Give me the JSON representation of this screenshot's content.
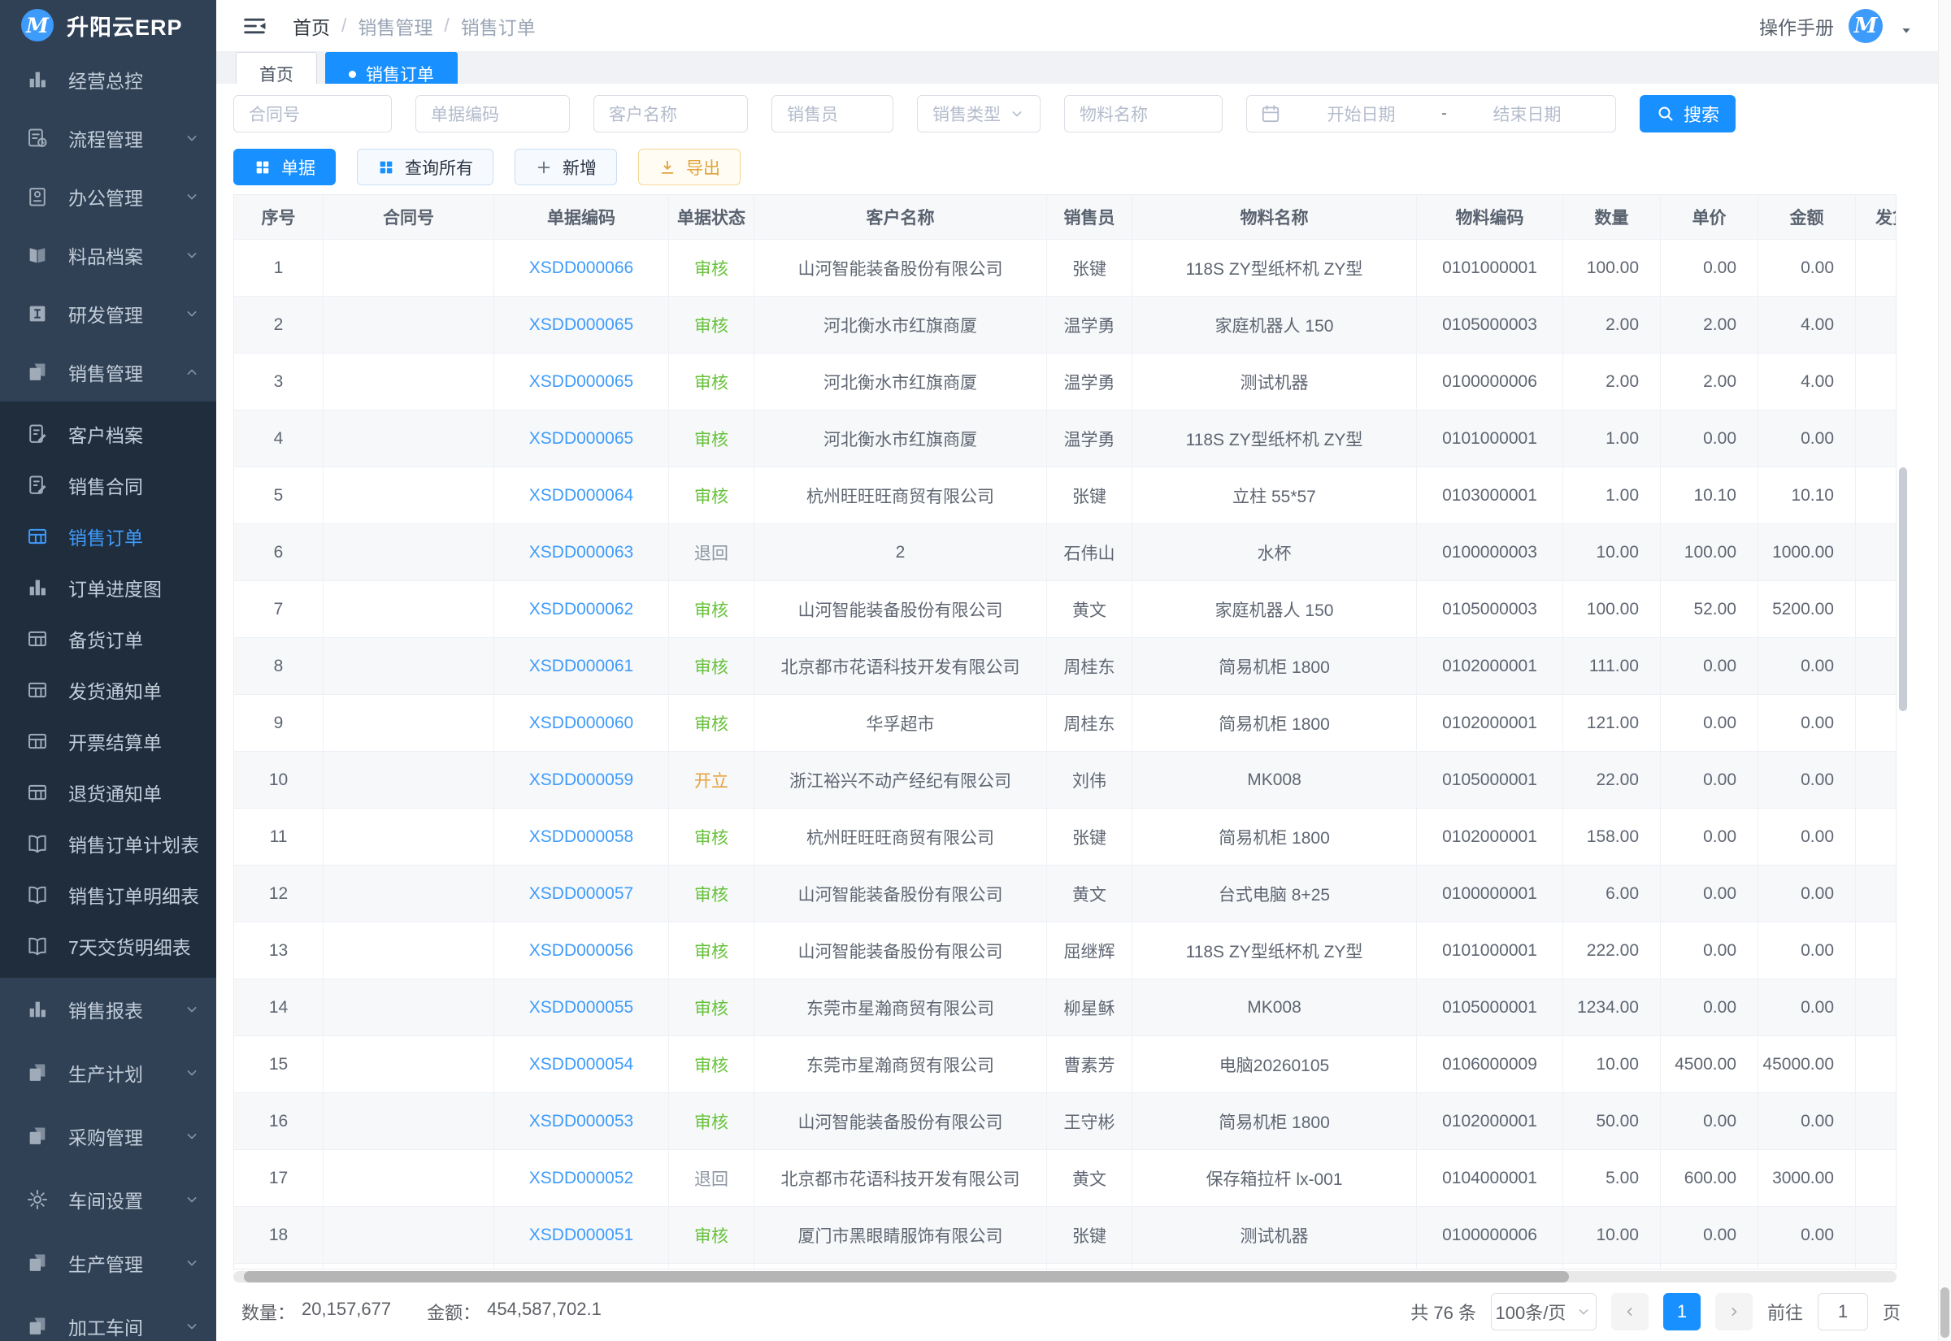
{
  "colors": {
    "accent": "#1890ff",
    "link": "#409eff",
    "status_approved": "#67c23a",
    "status_open": "#e6a23c",
    "status_returned": "#909399",
    "sidebar_bg": "#304156",
    "sidebar_submenu_bg": "#1f2d3d"
  },
  "sidebar": {
    "logo_letter": "M",
    "logo_text": "升阳云ERP",
    "top_items": [
      {
        "label": "经营总控",
        "icon": "chart",
        "chevron": ""
      },
      {
        "label": "流程管理",
        "icon": "flow",
        "chevron": "down"
      },
      {
        "label": "办公管理",
        "icon": "office",
        "chevron": "down"
      },
      {
        "label": "料品档案",
        "icon": "materials",
        "chevron": "down"
      },
      {
        "label": "研发管理",
        "icon": "rnd",
        "chevron": "down"
      },
      {
        "label": "销售管理",
        "icon": "sales",
        "chevron": "up"
      }
    ],
    "submenu_items": [
      {
        "label": "客户档案",
        "icon": "doc-edit",
        "active": false
      },
      {
        "label": "销售合同",
        "icon": "doc-edit",
        "active": false
      },
      {
        "label": "销售订单",
        "icon": "grid",
        "active": true
      },
      {
        "label": "订单进度图",
        "icon": "chart",
        "active": false
      },
      {
        "label": "备货订单",
        "icon": "grid",
        "active": false
      },
      {
        "label": "发货通知单",
        "icon": "grid",
        "active": false
      },
      {
        "label": "开票结算单",
        "icon": "grid",
        "active": false
      },
      {
        "label": "退货通知单",
        "icon": "grid",
        "active": false
      },
      {
        "label": "销售订单计划表",
        "icon": "book",
        "active": false
      },
      {
        "label": "销售订单明细表",
        "icon": "book",
        "active": false
      },
      {
        "label": "7天交货明细表",
        "icon": "book",
        "active": false
      }
    ],
    "bottom_items": [
      {
        "label": "销售报表",
        "icon": "chart",
        "chevron": "down"
      },
      {
        "label": "生产计划",
        "icon": "sales",
        "chevron": "down"
      },
      {
        "label": "采购管理",
        "icon": "sales",
        "chevron": "down"
      },
      {
        "label": "车间设置",
        "icon": "gear",
        "chevron": "down"
      },
      {
        "label": "生产管理",
        "icon": "sales",
        "chevron": "down"
      },
      {
        "label": "加工车间",
        "icon": "sales",
        "chevron": "down"
      }
    ]
  },
  "topbar": {
    "breadcrumb": {
      "items": [
        "首页",
        "销售管理",
        "销售订单"
      ],
      "separator": "/"
    },
    "manual_label": "操作手册",
    "avatar_letter": "M"
  },
  "tabs": [
    {
      "label": "首页",
      "active": false
    },
    {
      "label": "销售订单",
      "active": true
    }
  ],
  "filters": {
    "contract_placeholder": "合同号",
    "doc_code_placeholder": "单据编码",
    "customer_placeholder": "客户名称",
    "salesperson_placeholder": "销售员",
    "sales_type_placeholder": "销售类型",
    "material_placeholder": "物料名称",
    "date_start_placeholder": "开始日期",
    "date_separator": "-",
    "date_end_placeholder": "结束日期",
    "search_label": "搜索"
  },
  "toolbar": {
    "items": [
      {
        "label": "单据"
      },
      {
        "label": "查询所有"
      },
      {
        "label": "新增"
      },
      {
        "label": "导出"
      }
    ]
  },
  "table": {
    "headers": [
      "序号",
      "合同号",
      "单据编码",
      "单据状态",
      "客户名称",
      "销售员",
      "物料名称",
      "物料编码",
      "数量",
      "单价",
      "金额",
      "发货"
    ],
    "rows": [
      {
        "no": "1",
        "contract": "",
        "code": "XSDD000066",
        "status": "审核",
        "status_color": "green",
        "customer": "山河智能装备股份有限公司",
        "sales": "张键",
        "material": "118S ZY型纸杯机 ZY型",
        "material_code": "0101000001",
        "qty": "100.00",
        "price": "0.00",
        "amount": "0.00"
      },
      {
        "no": "2",
        "contract": "",
        "code": "XSDD000065",
        "status": "审核",
        "status_color": "green",
        "customer": "河北衡水市红旗商厦",
        "sales": "温学勇",
        "material": "家庭机器人 150",
        "material_code": "0105000003",
        "qty": "2.00",
        "price": "2.00",
        "amount": "4.00"
      },
      {
        "no": "3",
        "contract": "",
        "code": "XSDD000065",
        "status": "审核",
        "status_color": "green",
        "customer": "河北衡水市红旗商厦",
        "sales": "温学勇",
        "material": "测试机器",
        "material_code": "0100000006",
        "qty": "2.00",
        "price": "2.00",
        "amount": "4.00"
      },
      {
        "no": "4",
        "contract": "",
        "code": "XSDD000065",
        "status": "审核",
        "status_color": "green",
        "customer": "河北衡水市红旗商厦",
        "sales": "温学勇",
        "material": "118S ZY型纸杯机 ZY型",
        "material_code": "0101000001",
        "qty": "1.00",
        "price": "0.00",
        "amount": "0.00"
      },
      {
        "no": "5",
        "contract": "",
        "code": "XSDD000064",
        "status": "审核",
        "status_color": "green",
        "customer": "杭州旺旺旺商贸有限公司",
        "sales": "张键",
        "material": "立柱 55*57",
        "material_code": "0103000001",
        "qty": "1.00",
        "price": "10.10",
        "amount": "10.10"
      },
      {
        "no": "6",
        "contract": "",
        "code": "XSDD000063",
        "status": "退回",
        "status_color": "gray",
        "customer": "2",
        "sales": "石伟山",
        "material": "水杯",
        "material_code": "0100000003",
        "qty": "10.00",
        "price": "100.00",
        "amount": "1000.00"
      },
      {
        "no": "7",
        "contract": "",
        "code": "XSDD000062",
        "status": "审核",
        "status_color": "green",
        "customer": "山河智能装备股份有限公司",
        "sales": "黄文",
        "material": "家庭机器人 150",
        "material_code": "0105000003",
        "qty": "100.00",
        "price": "52.00",
        "amount": "5200.00"
      },
      {
        "no": "8",
        "contract": "",
        "code": "XSDD000061",
        "status": "审核",
        "status_color": "green",
        "customer": "北京都市花语科技开发有限公司",
        "sales": "周桂东",
        "material": "简易机柜 1800",
        "material_code": "0102000001",
        "qty": "111.00",
        "price": "0.00",
        "amount": "0.00"
      },
      {
        "no": "9",
        "contract": "",
        "code": "XSDD000060",
        "status": "审核",
        "status_color": "green",
        "customer": "华孚超市",
        "sales": "周桂东",
        "material": "简易机柜 1800",
        "material_code": "0102000001",
        "qty": "121.00",
        "price": "0.00",
        "amount": "0.00"
      },
      {
        "no": "10",
        "contract": "",
        "code": "XSDD000059",
        "status": "开立",
        "status_color": "orange",
        "customer": "浙江裕兴不动产经纪有限公司",
        "sales": "刘伟",
        "material": "MK008",
        "material_code": "0105000001",
        "qty": "22.00",
        "price": "0.00",
        "amount": "0.00"
      },
      {
        "no": "11",
        "contract": "",
        "code": "XSDD000058",
        "status": "审核",
        "status_color": "green",
        "customer": "杭州旺旺旺商贸有限公司",
        "sales": "张键",
        "material": "简易机柜 1800",
        "material_code": "0102000001",
        "qty": "158.00",
        "price": "0.00",
        "amount": "0.00"
      },
      {
        "no": "12",
        "contract": "",
        "code": "XSDD000057",
        "status": "审核",
        "status_color": "green",
        "customer": "山河智能装备股份有限公司",
        "sales": "黄文",
        "material": "台式电脑 8+25",
        "material_code": "0100000001",
        "qty": "6.00",
        "price": "0.00",
        "amount": "0.00"
      },
      {
        "no": "13",
        "contract": "",
        "code": "XSDD000056",
        "status": "审核",
        "status_color": "green",
        "customer": "山河智能装备股份有限公司",
        "sales": "屈继辉",
        "material": "118S ZY型纸杯机 ZY型",
        "material_code": "0101000001",
        "qty": "222.00",
        "price": "0.00",
        "amount": "0.00"
      },
      {
        "no": "14",
        "contract": "",
        "code": "XSDD000055",
        "status": "审核",
        "status_color": "green",
        "customer": "东莞市星瀚商贸有限公司",
        "sales": "柳星稣",
        "material": "MK008",
        "material_code": "0105000001",
        "qty": "1234.00",
        "price": "0.00",
        "amount": "0.00"
      },
      {
        "no": "15",
        "contract": "",
        "code": "XSDD000054",
        "status": "审核",
        "status_color": "green",
        "customer": "东莞市星瀚商贸有限公司",
        "sales": "曹素芳",
        "material": "电脑20260105",
        "material_code": "0106000009",
        "qty": "10.00",
        "price": "4500.00",
        "amount": "45000.00"
      },
      {
        "no": "16",
        "contract": "",
        "code": "XSDD000053",
        "status": "审核",
        "status_color": "green",
        "customer": "山河智能装备股份有限公司",
        "sales": "王守彬",
        "material": "简易机柜 1800",
        "material_code": "0102000001",
        "qty": "50.00",
        "price": "0.00",
        "amount": "0.00"
      },
      {
        "no": "17",
        "contract": "",
        "code": "XSDD000052",
        "status": "退回",
        "status_color": "gray",
        "customer": "北京都市花语科技开发有限公司",
        "sales": "黄文",
        "material": "保存箱拉杆 lx-001",
        "material_code": "0104000001",
        "qty": "5.00",
        "price": "600.00",
        "amount": "3000.00"
      },
      {
        "no": "18",
        "contract": "",
        "code": "XSDD000051",
        "status": "审核",
        "status_color": "green",
        "customer": "厦门市黑眼睛服饰有限公司",
        "sales": "张键",
        "material": "测试机器",
        "material_code": "0100000006",
        "qty": "10.00",
        "price": "0.00",
        "amount": "0.00"
      }
    ]
  },
  "summary": {
    "quantity_label": "数量：",
    "quantity_value": "20,157,677",
    "amount_label": "金额：",
    "amount_value": "454,587,702.1"
  },
  "pagination": {
    "total_text": "共 76 条",
    "page_size_text": "100条/页",
    "current_page": "1",
    "goto_label": "前往",
    "goto_value": "1",
    "unit_label": "页"
  }
}
